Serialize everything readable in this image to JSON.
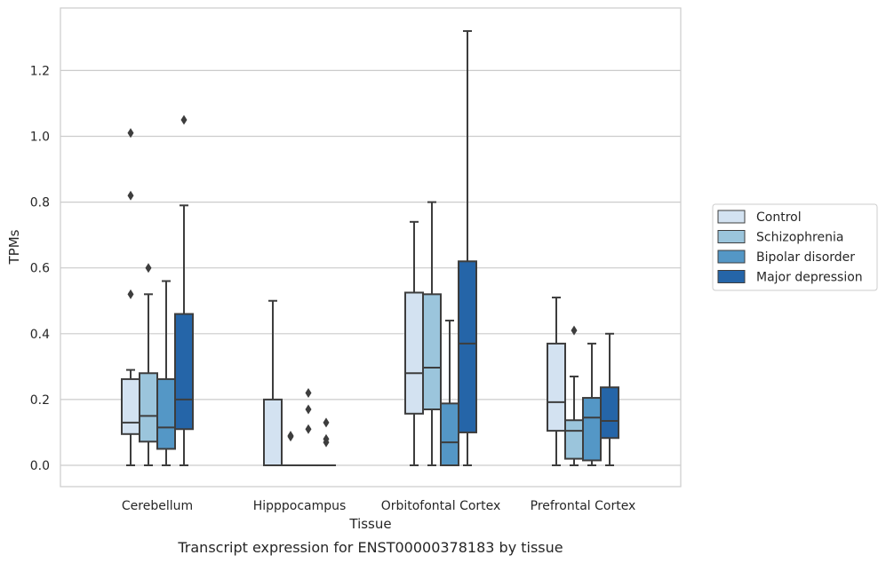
{
  "chart_data": {
    "type": "box",
    "xlabel": "Tissue",
    "ylabel": "TPMs",
    "caption": "Transcript expression for ENST00000378183 by tissue",
    "ylim": [
      -0.065,
      1.39
    ],
    "yticks": [
      0.0,
      0.2,
      0.4,
      0.6,
      0.8,
      1.0,
      1.2
    ],
    "ytick_labels": [
      "0.0",
      "0.2",
      "0.4",
      "0.6",
      "0.8",
      "1.0",
      "1.2"
    ],
    "grid": "horizontal",
    "legend_position": "right",
    "categories": [
      "Cerebellum",
      "Hipppocampus",
      "Orbitofontal Cortex",
      "Prefrontal Cortex"
    ],
    "series": [
      {
        "name": "Control",
        "color": "#d3e2f1",
        "boxes": [
          {
            "whislo": 0.0,
            "q1": 0.095,
            "med": 0.13,
            "q3": 0.262,
            "whishi": 0.29,
            "fliers": [
              0.52,
              0.82,
              1.01
            ]
          },
          {
            "whislo": 0.0,
            "q1": 0.0,
            "med": 0.0,
            "q3": 0.2,
            "whishi": 0.5,
            "fliers": []
          },
          {
            "whislo": 0.0,
            "q1": 0.157,
            "med": 0.28,
            "q3": 0.525,
            "whishi": 0.74,
            "fliers": []
          },
          {
            "whislo": 0.0,
            "q1": 0.105,
            "med": 0.192,
            "q3": 0.37,
            "whishi": 0.51,
            "fliers": []
          }
        ]
      },
      {
        "name": "Schizophrenia",
        "color": "#9bc5dc",
        "boxes": [
          {
            "whislo": 0.0,
            "q1": 0.072,
            "med": 0.15,
            "q3": 0.28,
            "whishi": 0.52,
            "fliers": [
              0.6
            ]
          },
          {
            "whislo": 0.0,
            "q1": 0.0,
            "med": 0.0,
            "q3": 0.0,
            "whishi": 0.0,
            "fliers": [
              0.087,
              0.09
            ]
          },
          {
            "whislo": 0.0,
            "q1": 0.17,
            "med": 0.297,
            "q3": 0.52,
            "whishi": 0.8,
            "fliers": []
          },
          {
            "whislo": 0.0,
            "q1": 0.02,
            "med": 0.105,
            "q3": 0.137,
            "whishi": 0.27,
            "fliers": [
              0.41
            ]
          }
        ]
      },
      {
        "name": "Bipolar disorder",
        "color": "#5497c6",
        "boxes": [
          {
            "whislo": 0.0,
            "q1": 0.05,
            "med": 0.115,
            "q3": 0.262,
            "whishi": 0.56,
            "fliers": []
          },
          {
            "whislo": 0.0,
            "q1": 0.0,
            "med": 0.0,
            "q3": 0.0,
            "whishi": 0.0,
            "fliers": [
              0.11,
              0.17,
              0.22
            ]
          },
          {
            "whislo": 0.0,
            "q1": 0.0,
            "med": 0.07,
            "q3": 0.188,
            "whishi": 0.44,
            "fliers": []
          },
          {
            "whislo": 0.0,
            "q1": 0.015,
            "med": 0.145,
            "q3": 0.205,
            "whishi": 0.37,
            "fliers": []
          }
        ]
      },
      {
        "name": "Major depression",
        "color": "#2565a8",
        "boxes": [
          {
            "whislo": 0.0,
            "q1": 0.11,
            "med": 0.2,
            "q3": 0.46,
            "whishi": 0.79,
            "fliers": [
              1.05
            ]
          },
          {
            "whislo": 0.0,
            "q1": 0.0,
            "med": 0.0,
            "q3": 0.0,
            "whishi": 0.0,
            "fliers": [
              0.07,
              0.08,
              0.13
            ]
          },
          {
            "whislo": 0.0,
            "q1": 0.1,
            "med": 0.37,
            "q3": 0.62,
            "whishi": 1.32,
            "fliers": []
          },
          {
            "whislo": 0.0,
            "q1": 0.083,
            "med": 0.135,
            "q3": 0.237,
            "whishi": 0.4,
            "fliers": []
          }
        ]
      }
    ]
  }
}
